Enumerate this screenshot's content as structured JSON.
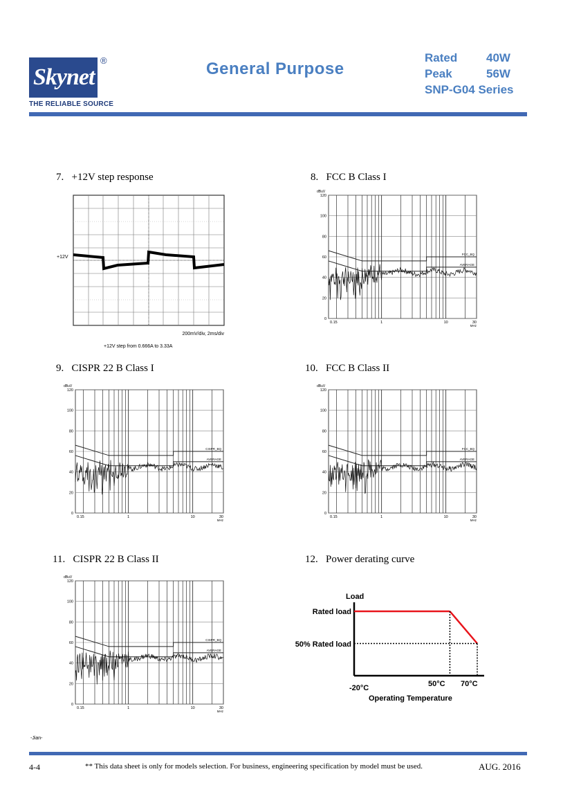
{
  "header": {
    "logo_text": "Skynet",
    "registered": "®",
    "tagline": "THE RELIABLE SOURCE",
    "title": "General  Purpose",
    "specs": [
      {
        "label": "Rated",
        "value": "40W"
      },
      {
        "label": "Peak",
        "value": "56W"
      }
    ],
    "series": "SNP-G04 Series"
  },
  "sections": {
    "s7": {
      "num": "7.",
      "title": "+12V step response"
    },
    "s8": {
      "num": "8.",
      "title": "FCC B Class I"
    },
    "s9": {
      "num": "9.",
      "title": "CISPR 22 B Class I"
    },
    "s10": {
      "num": "10.",
      "title": "FCC B Class II"
    },
    "s11": {
      "num": "11.",
      "title": "CISPR 22 B Class II"
    },
    "s12": {
      "num": "12.",
      "title": "Power derating curve"
    }
  },
  "scope": {
    "level_label": "+12V",
    "scale_label": "200mV/div, 2ms/div",
    "caption": "+12V step from 0.666A to 3.33A"
  },
  "emi_axes": {
    "unit": "dBuV",
    "yticks": [
      "120",
      "100",
      "80",
      "60",
      "40",
      "20",
      "0"
    ],
    "xticks": [
      "0.15",
      "1",
      "10",
      "30"
    ],
    "xunit": "MHz",
    "avg_label": "AVERAGE"
  },
  "emi_charts": [
    {
      "id": "c8",
      "limit_label": "FCC_BQ"
    },
    {
      "id": "c9",
      "limit_label": "CISPR_BQ"
    },
    {
      "id": "c10",
      "limit_label": "FCC_BQ"
    },
    {
      "id": "c11",
      "limit_label": "CISPR_BQ"
    }
  ],
  "derating": {
    "ylabel": "Load",
    "rated_load": "Rated  load",
    "half_load": "50% Rated load",
    "x_min": "-20°C",
    "x_mid": "50°C",
    "x_max": "70°C",
    "xlabel": "Operating Temperature",
    "line_color": "#e8141b"
  },
  "chart_data": [
    {
      "type": "line",
      "title": "Power derating curve",
      "xlabel": "Operating Temperature",
      "ylabel": "Load",
      "x": [
        -20,
        50,
        70
      ],
      "series": [
        {
          "values": [
            100,
            100,
            50
          ]
        }
      ],
      "y_unit": "% Rated load"
    }
  ],
  "footer": {
    "page": "4-4",
    "note": "** This data sheet is only for models selection.  For business, engineering specification by model must be used.",
    "date": "AUG. 2016",
    "side_mark": "-Jian-"
  }
}
